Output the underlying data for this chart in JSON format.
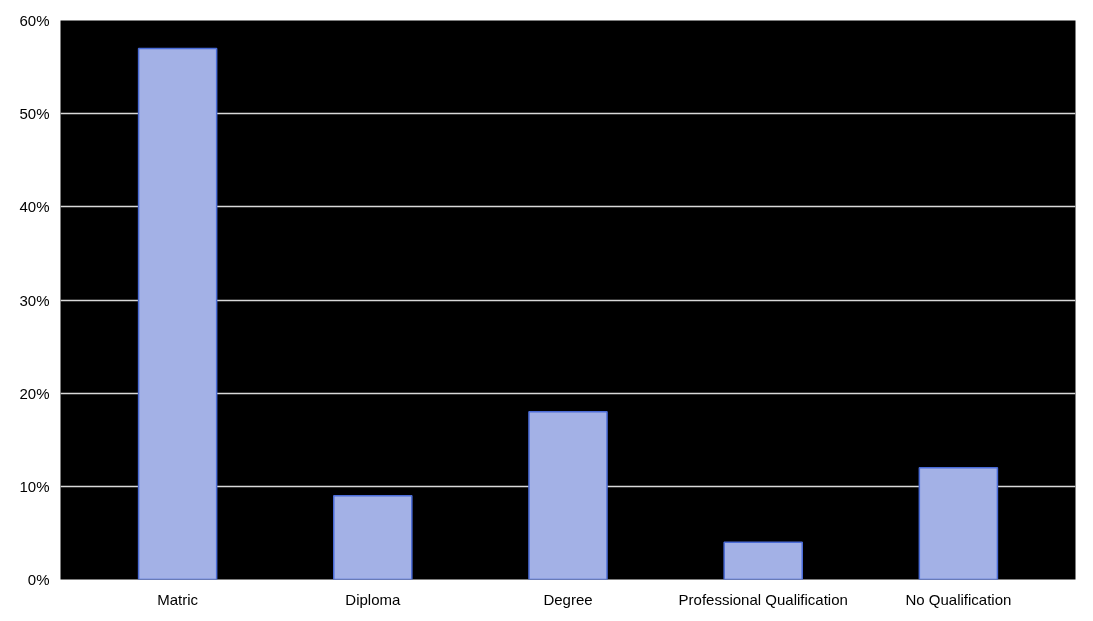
{
  "chart_data": {
    "type": "bar",
    "categories": [
      "Matric",
      "Diploma",
      "Degree",
      "Professional Qualification",
      "No Qualification"
    ],
    "values": [
      57,
      9,
      18,
      4,
      12
    ],
    "color": "#a3b1e6",
    "ylim": [
      0,
      60
    ],
    "yticks": [
      {
        "value": 0,
        "label": "0%"
      },
      {
        "value": 10,
        "label": "10%"
      },
      {
        "value": 20,
        "label": "20%"
      },
      {
        "value": 30,
        "label": "30%"
      },
      {
        "value": 40,
        "label": "40%"
      },
      {
        "value": 50,
        "label": "50%"
      },
      {
        "value": 60,
        "label": "60%"
      }
    ],
    "grid": "y"
  }
}
